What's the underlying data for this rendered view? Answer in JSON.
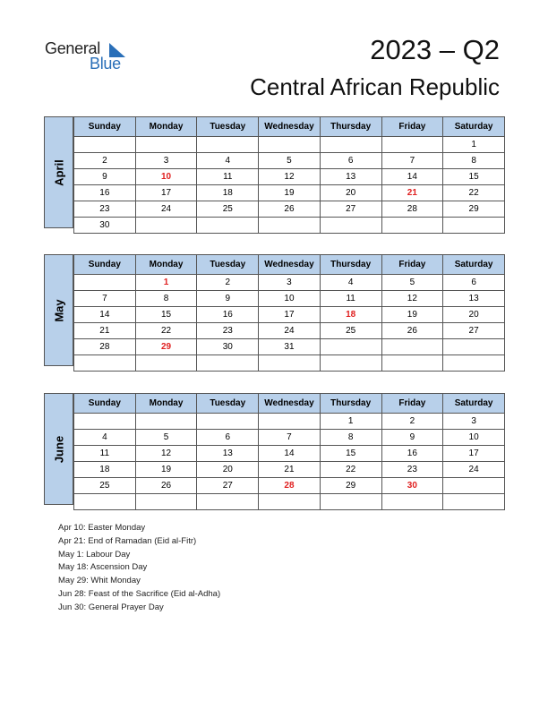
{
  "logo": {
    "word1": "General",
    "word2": "Blue"
  },
  "title": "2023 – Q2",
  "subtitle": "Central African Republic",
  "weekdays": [
    "Sunday",
    "Monday",
    "Tuesday",
    "Wednesday",
    "Thursday",
    "Friday",
    "Saturday"
  ],
  "months": [
    {
      "name": "April",
      "weeks": [
        [
          "",
          "",
          "",
          "",
          "",
          "",
          "1"
        ],
        [
          "2",
          "3",
          "4",
          "5",
          "6",
          "7",
          "8"
        ],
        [
          "9",
          "10",
          "11",
          "12",
          "13",
          "14",
          "15"
        ],
        [
          "16",
          "17",
          "18",
          "19",
          "20",
          "21",
          "22"
        ],
        [
          "23",
          "24",
          "25",
          "26",
          "27",
          "28",
          "29"
        ],
        [
          "30",
          "",
          "",
          "",
          "",
          "",
          ""
        ]
      ],
      "holidays": [
        "10",
        "21"
      ]
    },
    {
      "name": "May",
      "weeks": [
        [
          "",
          "1",
          "2",
          "3",
          "4",
          "5",
          "6"
        ],
        [
          "7",
          "8",
          "9",
          "10",
          "11",
          "12",
          "13"
        ],
        [
          "14",
          "15",
          "16",
          "17",
          "18",
          "19",
          "20"
        ],
        [
          "21",
          "22",
          "23",
          "24",
          "25",
          "26",
          "27"
        ],
        [
          "28",
          "29",
          "30",
          "31",
          "",
          "",
          ""
        ],
        [
          "",
          "",
          "",
          "",
          "",
          "",
          ""
        ]
      ],
      "holidays": [
        "1",
        "18",
        "29"
      ]
    },
    {
      "name": "June",
      "weeks": [
        [
          "",
          "",
          "",
          "",
          "1",
          "2",
          "3"
        ],
        [
          "4",
          "5",
          "6",
          "7",
          "8",
          "9",
          "10"
        ],
        [
          "11",
          "12",
          "13",
          "14",
          "15",
          "16",
          "17"
        ],
        [
          "18",
          "19",
          "20",
          "21",
          "22",
          "23",
          "24"
        ],
        [
          "25",
          "26",
          "27",
          "28",
          "29",
          "30",
          ""
        ],
        [
          "",
          "",
          "",
          "",
          "",
          "",
          ""
        ]
      ],
      "holidays": [
        "28",
        "30"
      ]
    }
  ],
  "holiday_notes": [
    "Apr 10: Easter Monday",
    "Apr 21: End of Ramadan (Eid al-Fitr)",
    "May 1: Labour Day",
    "May 18: Ascension Day",
    "May 29: Whit Monday",
    "Jun 28: Feast of the Sacrifice (Eid al-Adha)",
    "Jun 30: General Prayer Day"
  ],
  "colors": {
    "header_bg": "#b8d0ea",
    "holiday": "#e02020",
    "brand_blue": "#2a6fb8"
  }
}
